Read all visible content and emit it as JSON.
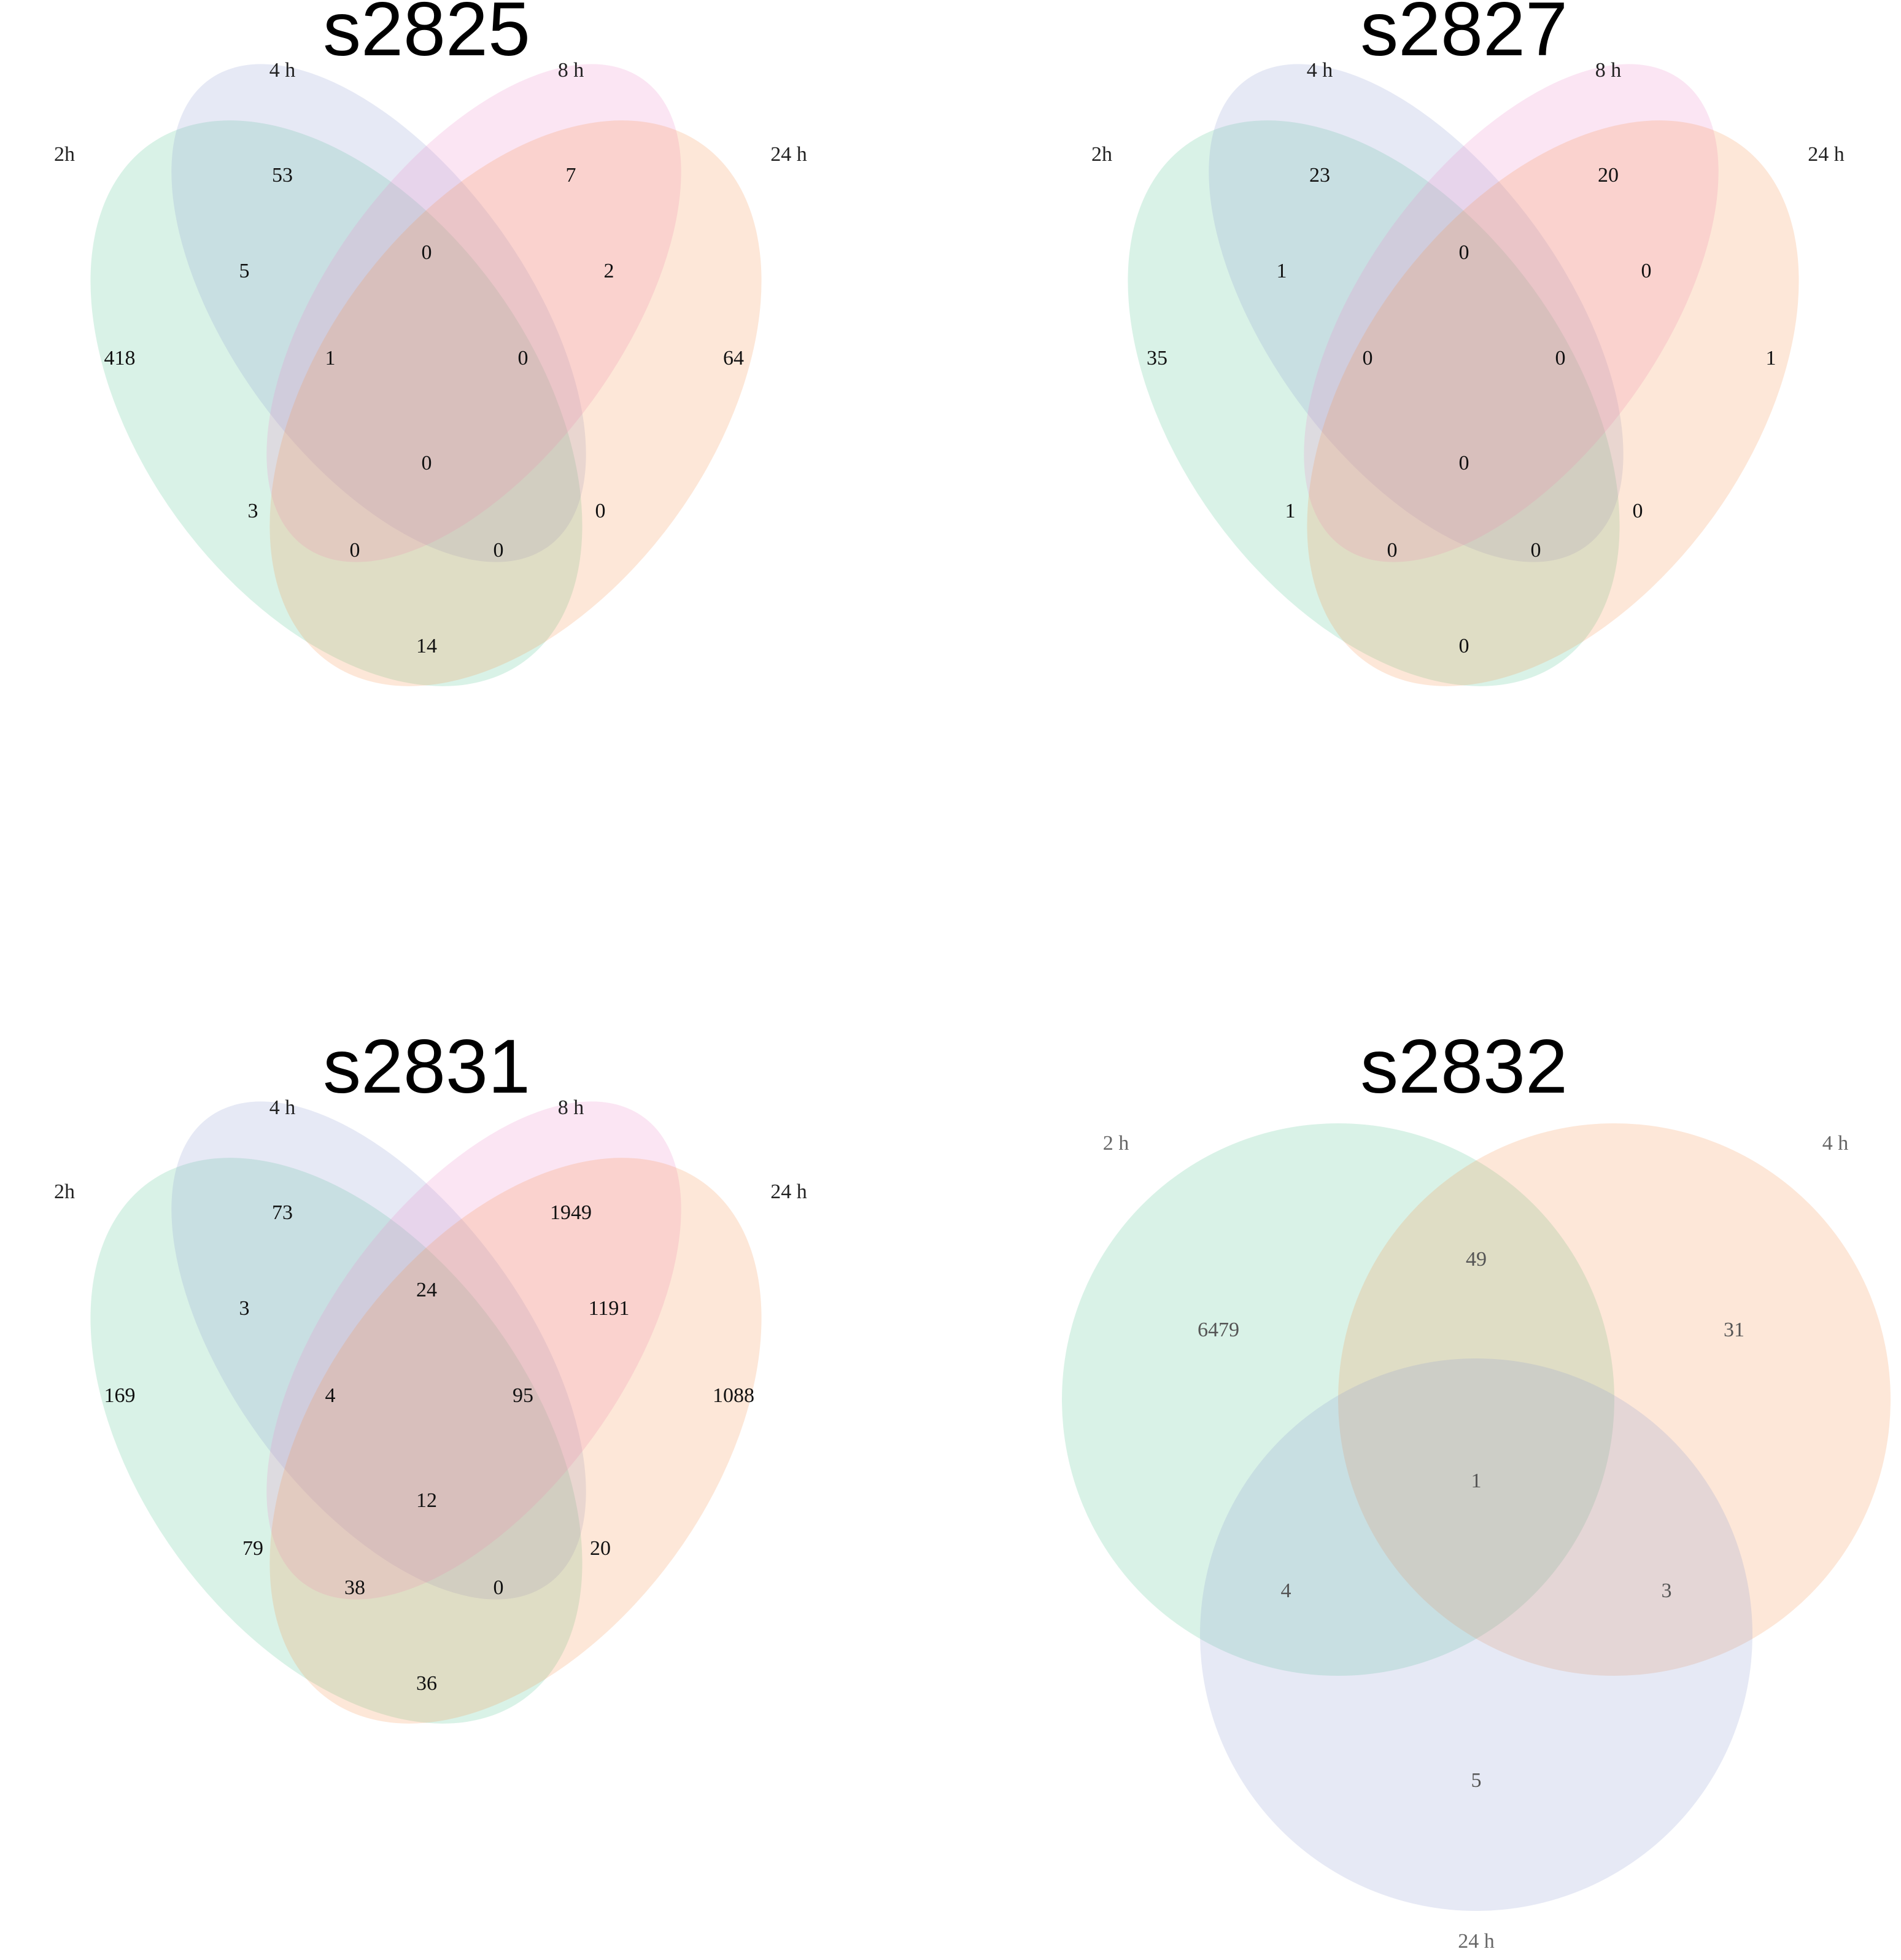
{
  "panels": [
    {
      "title": "s2825",
      "kind": "venn4",
      "sets": [
        "2h",
        "4 h",
        "8 h",
        "24 h"
      ],
      "colors": [
        "#2db77a",
        "#8d9cd0",
        "#ef8ac8",
        "#f7914f"
      ],
      "counts": {
        "only_2h": "418",
        "only_4h": "53",
        "only_8h": "7",
        "only_24h": "64",
        "2h_4h": "5",
        "4h_8h": "0",
        "8h_24h": "2",
        "2h_24h": "14",
        "2h_4h_8h": "1",
        "4h_8h_24h": "0",
        "2h_8h": "3",
        "4h_24h": "0",
        "2h_4h_8h_24h": "0",
        "2h_8h_24h": "0",
        "2h_4h_24h": "0"
      }
    },
    {
      "title": "s2827",
      "kind": "venn4",
      "sets": [
        "2h",
        "4 h",
        "8 h",
        "24 h"
      ],
      "colors": [
        "#2db77a",
        "#8d9cd0",
        "#ef8ac8",
        "#f7914f"
      ],
      "counts": {
        "only_2h": "35",
        "only_4h": "23",
        "only_8h": "20",
        "only_24h": "1",
        "2h_4h": "1",
        "4h_8h": "0",
        "8h_24h": "0",
        "2h_24h": "0",
        "2h_4h_8h": "0",
        "4h_8h_24h": "0",
        "2h_8h": "1",
        "4h_24h": "0",
        "2h_4h_8h_24h": "0",
        "2h_8h_24h": "0",
        "2h_4h_24h": "0"
      }
    },
    {
      "title": "s2831",
      "kind": "venn4",
      "sets": [
        "2h",
        "4 h",
        "8 h",
        "24 h"
      ],
      "colors": [
        "#2db77a",
        "#8d9cd0",
        "#ef8ac8",
        "#f7914f"
      ],
      "counts": {
        "only_2h": "169",
        "only_4h": "73",
        "only_8h": "1949",
        "only_24h": "1088",
        "2h_4h": "3",
        "4h_8h": "24",
        "8h_24h": "1191",
        "2h_24h": "36",
        "2h_4h_8h": "4",
        "4h_8h_24h": "95",
        "2h_8h": "79",
        "4h_24h": "20",
        "2h_4h_8h_24h": "12",
        "2h_8h_24h": "38",
        "2h_4h_24h": "0"
      }
    },
    {
      "title": "s2832",
      "kind": "venn3",
      "sets": [
        "2 h",
        "4 h",
        "24 h"
      ],
      "colors": [
        "#2db77a",
        "#f7914f",
        "#8d9cd0"
      ],
      "counts": {
        "only_2h": "6479",
        "only_4h": "31",
        "only_24h": "5",
        "2h_4h": "49",
        "2h_24h": "4",
        "4h_24h": "3",
        "2h_4h_24h": "1"
      }
    }
  ]
}
